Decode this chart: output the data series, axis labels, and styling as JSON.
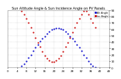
{
  "title": "Sun Altitude Angle & Sun Incidence Angle on PV Panels",
  "legend_labels": [
    "Alt Angle",
    "Inc Angle"
  ],
  "legend_colors": [
    "#0000cc",
    "#cc0000"
  ],
  "background_color": "#ffffff",
  "plot_bg": "#ffffff",
  "grid_color": "#aaaaaa",
  "blue_x": [
    6,
    7,
    8,
    9,
    10,
    11,
    12,
    13,
    14,
    15,
    16,
    17,
    18,
    19,
    20,
    21,
    22,
    23,
    24,
    25,
    26,
    27,
    28,
    29,
    30,
    31,
    32,
    33,
    34,
    35,
    36,
    37,
    38
  ],
  "blue_y": [
    2,
    6,
    10,
    15,
    20,
    26,
    31,
    36,
    41,
    45,
    49,
    53,
    56,
    59,
    61,
    62,
    62,
    61,
    59,
    56,
    53,
    49,
    45,
    41,
    36,
    31,
    26,
    20,
    15,
    10,
    6,
    2,
    0
  ],
  "red_x": [
    6,
    7,
    8,
    9,
    10,
    11,
    12,
    13,
    14,
    15,
    16,
    17,
    18,
    19,
    20,
    21,
    22,
    23,
    24,
    25,
    26,
    27,
    28,
    29,
    30,
    31,
    32,
    33,
    34,
    35,
    36,
    37,
    38
  ],
  "red_y": [
    88,
    83,
    77,
    70,
    63,
    55,
    47,
    39,
    32,
    25,
    19,
    14,
    11,
    9,
    9,
    11,
    14,
    19,
    25,
    32,
    39,
    47,
    55,
    63,
    70,
    77,
    83,
    88,
    88,
    83,
    77,
    70,
    63
  ],
  "xlim_min": 0,
  "xlim_max": 44,
  "ylim_min": 0,
  "ylim_max": 90,
  "ytick_labels": [
    "0",
    "10",
    "20",
    "30",
    "40",
    "50",
    "60",
    "70",
    "80",
    "90"
  ],
  "ytick_values": [
    0,
    10,
    20,
    30,
    40,
    50,
    60,
    70,
    80,
    90
  ],
  "xtick_values": [
    0,
    4,
    8,
    12,
    16,
    20,
    24,
    28,
    32,
    36,
    40,
    44
  ],
  "xtick_labels": [
    "0",
    "4",
    "8",
    "12",
    "16",
    "20",
    "24",
    "28",
    "32",
    "36",
    "40",
    "44"
  ],
  "marker_size": 1.2,
  "title_fontsize": 3.5,
  "tick_fontsize": 3.0,
  "legend_fontsize": 2.5
}
